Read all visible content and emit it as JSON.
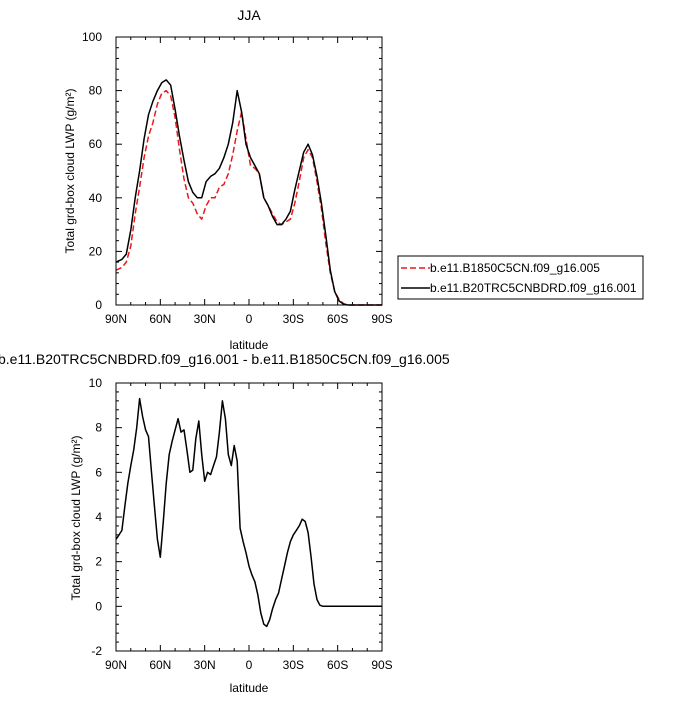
{
  "chart_data": [
    {
      "type": "line",
      "title": "JJA",
      "xlabel": "latitude",
      "ylabel": "Total grd-box cloud LWP (g/m²)",
      "xlim": [
        90,
        -90
      ],
      "ylim": [
        0,
        100
      ],
      "x_ticks": [
        90,
        60,
        30,
        0,
        -30,
        -60,
        -90
      ],
      "x_tick_labels": [
        "90N",
        "60N",
        "30N",
        "0",
        "30S",
        "60S",
        "90S"
      ],
      "y_ticks": [
        0,
        20,
        40,
        60,
        80,
        100
      ],
      "y_tick_labels": [
        "0",
        "20",
        "40",
        "60",
        "80",
        "100"
      ],
      "legend_position": "right",
      "series": [
        {
          "name": "b.e11.B1850C5CN.f09_g16.005",
          "color": "#e8191c",
          "dash": "dashed",
          "x": [
            90,
            86,
            83,
            80,
            77,
            74,
            71,
            68,
            65,
            62,
            59,
            56,
            53,
            50,
            47,
            44,
            41,
            38,
            35,
            32,
            29,
            26,
            23,
            20,
            17,
            14,
            11,
            8,
            5,
            2,
            -1,
            -4,
            -7,
            -10,
            -13,
            -16,
            -19,
            -22,
            -25,
            -28,
            -31,
            -34,
            -37,
            -40,
            -43,
            -46,
            -49,
            -52,
            -55,
            -58,
            -61,
            -64,
            -67,
            -70,
            -73,
            -76,
            -80,
            -85,
            -90
          ],
          "values": [
            13,
            14,
            16,
            22,
            34,
            44,
            55,
            63,
            68,
            75,
            79,
            80,
            78,
            70,
            58,
            47,
            40,
            38,
            34,
            32,
            37,
            40,
            40,
            44,
            45,
            49,
            56,
            65,
            72,
            62,
            52,
            51,
            49,
            40,
            37,
            34,
            31,
            30,
            31,
            32,
            38,
            46,
            55,
            58,
            55,
            46,
            36,
            23,
            12,
            5,
            2,
            0.5,
            0,
            0,
            0,
            0,
            0,
            0,
            0
          ]
        },
        {
          "name": "b.e11.B20TRC5CNBDRD.f09_g16.001",
          "color": "#000000",
          "dash": "solid",
          "x": [
            90,
            86,
            83,
            80,
            77,
            74,
            71,
            68,
            65,
            62,
            59,
            56,
            53,
            50,
            47,
            44,
            41,
            38,
            35,
            32,
            29,
            26,
            23,
            20,
            17,
            14,
            11,
            8,
            5,
            2,
            -1,
            -4,
            -7,
            -10,
            -13,
            -16,
            -19,
            -22,
            -25,
            -28,
            -31,
            -34,
            -37,
            -40,
            -43,
            -46,
            -49,
            -52,
            -55,
            -58,
            -61,
            -64,
            -67,
            -70,
            -73,
            -76,
            -80,
            -85,
            -90
          ],
          "values": [
            16,
            17,
            19,
            28,
            40,
            50,
            62,
            71,
            76,
            80,
            83,
            84,
            82,
            73,
            63,
            54,
            46,
            42,
            40,
            40,
            46,
            48,
            49,
            51,
            55,
            60,
            68,
            80,
            72,
            60,
            55,
            52,
            49,
            40,
            37,
            33,
            30,
            30,
            32,
            35,
            43,
            50,
            57,
            60,
            56,
            48,
            38,
            26,
            13,
            5,
            1.5,
            0.3,
            0,
            0,
            0,
            0,
            0,
            0,
            0
          ]
        }
      ]
    },
    {
      "type": "line",
      "title": "b.e11.B20TRC5CNBDRD.f09_g16.001 - b.e11.B1850C5CN.f09_g16.005",
      "xlabel": "latitude",
      "ylabel": "Total grd-box cloud LWP (g/m²)",
      "xlim": [
        90,
        -90
      ],
      "ylim": [
        -2,
        10
      ],
      "x_ticks": [
        90,
        60,
        30,
        0,
        -30,
        -60,
        -90
      ],
      "x_tick_labels": [
        "90N",
        "60N",
        "30N",
        "0",
        "30S",
        "60S",
        "90S"
      ],
      "y_ticks": [
        -2,
        0,
        2,
        4,
        6,
        8,
        10
      ],
      "y_tick_labels": [
        "-2",
        "0",
        "2",
        "4",
        "6",
        "8",
        "10"
      ],
      "series": [
        {
          "name": "",
          "color": "#000000",
          "dash": "solid",
          "x": [
            90,
            88,
            86,
            84,
            82,
            80,
            78,
            76,
            74,
            72,
            70,
            68,
            66,
            64,
            62,
            60,
            58,
            56,
            54,
            52,
            50,
            48,
            46,
            44,
            42,
            40,
            38,
            36,
            34,
            32,
            30,
            28,
            26,
            24,
            22,
            20,
            18,
            16,
            14,
            12,
            10,
            8,
            6,
            4,
            2,
            0,
            -2,
            -4,
            -6,
            -8,
            -10,
            -12,
            -14,
            -16,
            -18,
            -20,
            -22,
            -24,
            -26,
            -28,
            -30,
            -32,
            -34,
            -36,
            -38,
            -40,
            -42,
            -44,
            -46,
            -48,
            -50,
            -52,
            -54,
            -56,
            -58,
            -60,
            -62,
            -64,
            -66,
            -68,
            -70,
            -75,
            -80,
            -85,
            -90
          ],
          "values": [
            3.0,
            3.2,
            3.4,
            4.5,
            5.5,
            6.3,
            7.0,
            8.0,
            9.3,
            8.5,
            7.9,
            7.6,
            6.0,
            4.5,
            3.0,
            2.2,
            3.8,
            5.5,
            6.8,
            7.4,
            7.9,
            8.4,
            7.8,
            7.9,
            7.0,
            6.0,
            6.1,
            7.5,
            8.3,
            6.8,
            5.6,
            6.0,
            5.9,
            6.3,
            6.7,
            7.8,
            9.2,
            8.4,
            6.8,
            6.3,
            7.2,
            6.5,
            3.5,
            2.9,
            2.4,
            1.8,
            1.4,
            1.1,
            0.5,
            -0.3,
            -0.8,
            -0.9,
            -0.6,
            -0.1,
            0.3,
            0.6,
            1.2,
            1.8,
            2.4,
            2.9,
            3.2,
            3.4,
            3.6,
            3.9,
            3.8,
            3.3,
            2.2,
            1.0,
            0.3,
            0.05,
            0.0,
            0.0,
            0.0,
            0.0,
            0.0,
            0.0,
            0.0,
            0.0,
            0.0,
            0.0,
            0.0,
            0.0,
            0.0,
            0.0,
            0.0
          ]
        }
      ]
    }
  ]
}
